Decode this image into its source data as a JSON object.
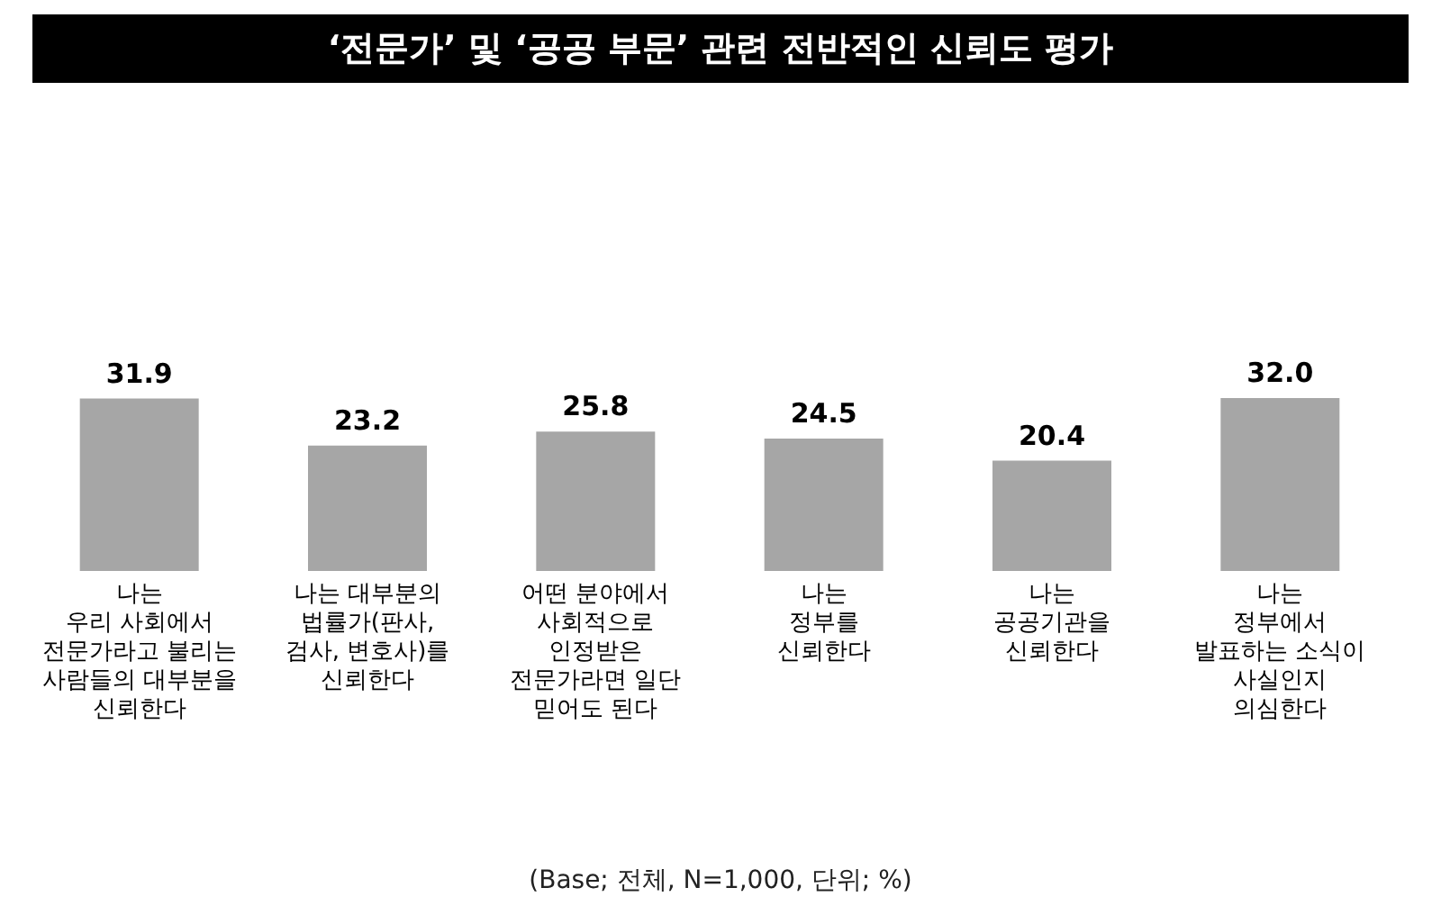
{
  "chart_data": {
    "type": "bar",
    "title": "‘전문가’ 및 ‘공공 부문’ 관련 전반적인 신뢰도 평가",
    "categories": [
      "나는\n우리 사회에서\n전문가라고 불리는\n사람들의 대부분을\n신뢰한다",
      "나는 대부분의\n법률가(판사,\n검사, 변호사)를\n신뢰한다",
      "어떤 분야에서\n사회적으로\n인정받은\n전문가라면 일단\n믿어도 된다",
      "나는\n정부를\n신뢰한다",
      "나는\n공공기관을\n신뢰한다",
      "나는\n정부에서\n발표하는 소식이\n사실인지\n의심한다"
    ],
    "values": [
      31.9,
      23.2,
      25.8,
      24.5,
      20.4,
      32.0
    ],
    "value_labels": [
      "31.9",
      "23.2",
      "25.8",
      "24.5",
      "20.4",
      "32.0"
    ],
    "color": "#a6a6a6",
    "grid": false,
    "annotations": [
      "(Base; 전체, N=1,000, 단위; %)"
    ]
  }
}
